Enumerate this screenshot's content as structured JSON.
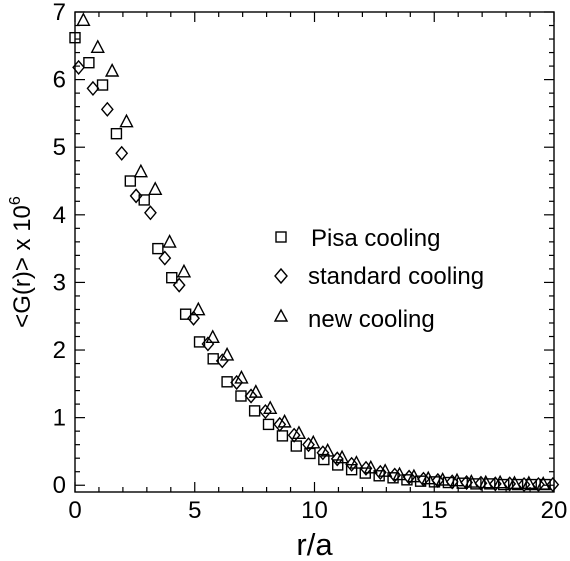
{
  "chart_data": {
    "type": "scatter",
    "xlabel": "r/a",
    "ylabel": "<G(r)> x 10",
    "ylabel_exponent": "6",
    "xlim": [
      0,
      20
    ],
    "ylim": [
      -0.1,
      7
    ],
    "x_ticks": [
      0,
      5,
      10,
      15,
      20
    ],
    "x_tick_labels": [
      "0",
      "5",
      "10",
      "15",
      "20"
    ],
    "y_ticks": [
      0,
      1,
      2,
      3,
      4,
      5,
      6,
      7
    ],
    "y_tick_labels": [
      "0",
      "1",
      "2",
      "3",
      "4",
      "5",
      "6",
      "7"
    ],
    "grid": false,
    "legend_position": "center-right",
    "series": [
      {
        "name": "Pisa cooling",
        "marker": "square",
        "x": [
          0.0,
          0.58,
          1.15,
          1.73,
          2.31,
          2.89,
          3.46,
          4.04,
          4.62,
          5.2,
          5.77,
          6.35,
          6.93,
          7.5,
          8.08,
          8.66,
          9.24,
          9.81,
          10.39,
          10.97,
          11.55,
          12.12,
          12.7,
          13.28,
          13.86,
          14.43,
          15.01,
          15.59,
          16.17,
          16.74,
          17.32,
          17.9,
          18.48,
          19.05,
          19.63
        ],
        "values": [
          6.62,
          6.25,
          5.92,
          5.2,
          4.5,
          4.22,
          3.5,
          3.07,
          2.53,
          2.12,
          1.87,
          1.53,
          1.32,
          1.1,
          0.9,
          0.73,
          0.58,
          0.47,
          0.38,
          0.3,
          0.23,
          0.18,
          0.14,
          0.11,
          0.08,
          0.06,
          0.05,
          0.04,
          0.03,
          0.02,
          0.02,
          0.01,
          0.01,
          0.01,
          0.01
        ]
      },
      {
        "name": "standard cooling",
        "marker": "diamond",
        "x": [
          0.15,
          0.75,
          1.35,
          1.95,
          2.55,
          3.15,
          3.75,
          4.35,
          4.95,
          5.55,
          6.15,
          6.75,
          7.35,
          7.95,
          8.55,
          9.15,
          9.75,
          10.35,
          10.95,
          11.55,
          12.15,
          12.75,
          13.35,
          13.95,
          14.55,
          15.15,
          15.75,
          16.35,
          16.95,
          17.55,
          18.15,
          18.75,
          19.35,
          19.95
        ],
        "values": [
          6.18,
          5.87,
          5.56,
          4.91,
          4.28,
          4.03,
          3.36,
          2.96,
          2.47,
          2.09,
          1.84,
          1.52,
          1.32,
          1.09,
          0.9,
          0.74,
          0.6,
          0.48,
          0.39,
          0.31,
          0.25,
          0.19,
          0.15,
          0.12,
          0.09,
          0.07,
          0.05,
          0.04,
          0.03,
          0.02,
          0.02,
          0.01,
          0.01,
          0.01
        ]
      },
      {
        "name": "new cooling",
        "marker": "triangle",
        "x": [
          0.35,
          0.95,
          1.55,
          2.15,
          2.75,
          3.35,
          3.95,
          4.55,
          5.15,
          5.75,
          6.35,
          6.95,
          7.55,
          8.15,
          8.75,
          9.35,
          9.95,
          10.55,
          11.15,
          11.75,
          12.35,
          12.95,
          13.55,
          14.15,
          14.75,
          15.35,
          15.95,
          16.55,
          17.15,
          17.75,
          18.35,
          18.95,
          19.55
        ],
        "values": [
          6.87,
          6.47,
          6.12,
          5.37,
          4.63,
          4.37,
          3.59,
          3.15,
          2.59,
          2.18,
          1.92,
          1.58,
          1.37,
          1.13,
          0.93,
          0.76,
          0.62,
          0.5,
          0.4,
          0.32,
          0.25,
          0.2,
          0.15,
          0.12,
          0.09,
          0.07,
          0.06,
          0.04,
          0.03,
          0.03,
          0.02,
          0.02,
          0.01
        ]
      }
    ]
  }
}
